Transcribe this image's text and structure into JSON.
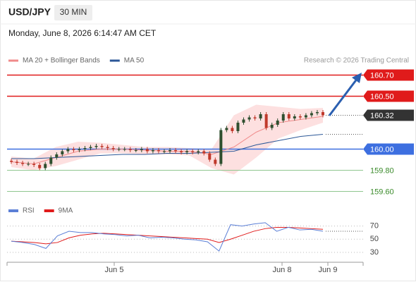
{
  "header": {
    "symbol": "USD/JPY",
    "interval": "30 MIN",
    "datetime": "Monday, June 8, 2026 6:14:47 AM CET"
  },
  "chart_data": {
    "type": "candlestick",
    "legend": [
      {
        "name": "MA 20 + Bollinger Bands",
        "color": "#f08a8a"
      },
      {
        "name": "MA 50",
        "color": "#2b5797"
      }
    ],
    "credit": "Research © 2026 Trading Central",
    "ylim": [
      159.51,
      160.81
    ],
    "candles": {
      "up_color": "#2f4f2f",
      "down_color": "#c0392b",
      "open": [
        159.89,
        159.88,
        159.87,
        159.86,
        159.86,
        159.85,
        159.82,
        159.86,
        159.92,
        159.95,
        159.98,
        160.0,
        159.99,
        160.0,
        160.01,
        160.02,
        160.03,
        160.02,
        160.01,
        160.0,
        160.0,
        160.0,
        159.99,
        159.99,
        160.0,
        159.98,
        159.99,
        159.98,
        159.98,
        159.99,
        159.98,
        159.97,
        159.98,
        159.97,
        159.98,
        159.96,
        159.9,
        159.86,
        160.18,
        160.2,
        160.17,
        160.25,
        160.28,
        160.3,
        160.29,
        160.33,
        160.2,
        160.23,
        160.27,
        160.33,
        160.29,
        160.31,
        160.3,
        160.32,
        160.34,
        160.35
      ],
      "high": [
        159.91,
        159.9,
        159.89,
        159.88,
        159.88,
        159.87,
        159.88,
        159.94,
        159.97,
        160.0,
        160.02,
        160.02,
        160.02,
        160.03,
        160.04,
        160.05,
        160.05,
        160.04,
        160.03,
        160.02,
        160.02,
        160.02,
        160.01,
        160.02,
        160.02,
        160.01,
        160.01,
        160.0,
        160.01,
        160.01,
        160.0,
        160.0,
        160.0,
        160.0,
        160.0,
        159.98,
        159.92,
        160.2,
        160.22,
        160.22,
        160.27,
        160.3,
        160.32,
        160.32,
        160.35,
        160.35,
        160.25,
        160.29,
        160.35,
        160.35,
        160.33,
        160.33,
        160.34,
        160.36,
        160.37,
        160.37
      ],
      "low": [
        159.86,
        159.85,
        159.84,
        159.84,
        159.83,
        159.8,
        159.8,
        159.84,
        159.9,
        159.93,
        159.96,
        159.97,
        159.97,
        159.98,
        159.99,
        160.0,
        160.0,
        159.99,
        159.98,
        159.98,
        159.98,
        159.97,
        159.97,
        159.97,
        159.96,
        159.96,
        159.96,
        159.96,
        159.96,
        159.96,
        159.95,
        159.95,
        159.95,
        159.95,
        159.94,
        159.88,
        159.84,
        159.84,
        160.16,
        160.15,
        160.15,
        160.23,
        160.26,
        160.27,
        160.27,
        160.18,
        160.18,
        160.21,
        160.25,
        160.27,
        160.27,
        160.28,
        160.28,
        160.3,
        160.32,
        160.3
      ],
      "close": [
        159.88,
        159.87,
        159.86,
        159.86,
        159.85,
        159.82,
        159.86,
        159.92,
        159.95,
        159.98,
        160.0,
        159.99,
        160.0,
        160.01,
        160.02,
        160.03,
        160.02,
        160.01,
        160.0,
        160.0,
        160.0,
        159.99,
        159.99,
        160.0,
        159.98,
        159.99,
        159.98,
        159.98,
        159.99,
        159.98,
        159.97,
        159.98,
        159.97,
        159.98,
        159.96,
        159.9,
        159.86,
        160.18,
        160.2,
        160.17,
        160.25,
        160.28,
        160.3,
        160.29,
        160.33,
        160.2,
        160.23,
        160.27,
        160.33,
        160.29,
        160.31,
        160.3,
        160.32,
        160.34,
        160.35,
        160.32
      ]
    },
    "bands": {
      "color": "#fde0e0",
      "upper": [
        159.93,
        159.91,
        160.02,
        160.07,
        160.06,
        160.04,
        160.02,
        160.02,
        160.01,
        160.0,
        160.32,
        160.42,
        160.4,
        160.38,
        160.39
      ],
      "lower": [
        159.83,
        159.8,
        159.84,
        159.9,
        159.96,
        159.96,
        159.95,
        159.95,
        159.94,
        159.82,
        159.76,
        159.92,
        160.1,
        160.18,
        160.25
      ]
    },
    "ma20": {
      "color": "#f08a8a",
      "values": [
        159.88,
        159.86,
        159.92,
        159.98,
        160.0,
        160.0,
        159.99,
        159.98,
        159.98,
        159.95,
        160.02,
        160.16,
        160.25,
        160.28,
        160.31
      ]
    },
    "ma50": {
      "color": "#2b5797",
      "values": [
        159.91,
        159.91,
        159.92,
        159.93,
        159.94,
        159.95,
        159.95,
        159.96,
        159.96,
        159.97,
        159.98,
        160.04,
        160.08,
        160.12,
        160.14
      ]
    },
    "levels": [
      {
        "value": 160.7,
        "label": "160.70",
        "color": "#e01b1b",
        "box": true
      },
      {
        "value": 160.5,
        "label": "160.50",
        "color": "#e01b1b",
        "box": true
      },
      {
        "value": 160.32,
        "color": "#333333",
        "box": true,
        "dotted": true
      },
      {
        "value": 160,
        "label": "160.00",
        "color": "#3d6fe0",
        "box": true
      },
      {
        "value": 159.8,
        "label": "159.80",
        "color": "#8fc78f",
        "box": false,
        "text_color": "#3a8a2a"
      },
      {
        "value": 159.6,
        "label": "159.60",
        "color": "#8fc78f",
        "box": false,
        "text_color": "#3a8a2a"
      }
    ],
    "rsi": {
      "legend": [
        {
          "name": "RSI",
          "color": "#5b7fd6"
        },
        {
          "name": "9MA",
          "color": "#e01b1b"
        }
      ],
      "ylim": [
        15,
        92
      ],
      "yticks": [
        70,
        50,
        30
      ],
      "rsi": [
        47,
        45,
        42,
        36,
        55,
        62,
        60,
        60,
        58,
        57,
        55,
        56,
        52,
        53,
        52,
        50,
        49,
        46,
        32,
        72,
        70,
        73,
        75,
        62,
        68,
        64,
        65,
        62
      ],
      "ma9": [
        47,
        46,
        45,
        43,
        45,
        52,
        56,
        58,
        59,
        58,
        57,
        56,
        55,
        54,
        53,
        52,
        51,
        50,
        45,
        50,
        56,
        62,
        66,
        68,
        68,
        67,
        66,
        65
      ]
    },
    "x_labels": [
      "Jun 5",
      "Jun 8",
      "Jun 9"
    ]
  }
}
